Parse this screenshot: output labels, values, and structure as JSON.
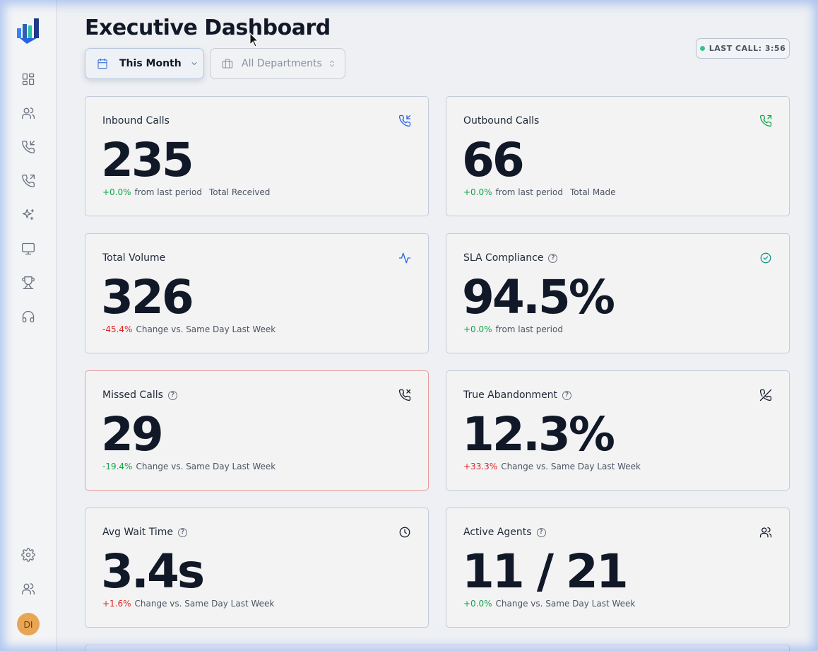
{
  "page": {
    "title": "Executive Dashboard"
  },
  "filters": {
    "period": {
      "label": "This Month"
    },
    "department": {
      "label": "All Departments"
    }
  },
  "status": {
    "last_call": "LAST CALL: 3:56",
    "indicator_color": "#3fbf88"
  },
  "user": {
    "initials": "DI"
  },
  "sidebar": {
    "nav_icons": [
      "dashboard-icon",
      "users-icon",
      "inbound-call-icon",
      "outbound-call-icon",
      "ai-sparkle-icon",
      "monitor-icon",
      "trophy-icon",
      "headset-icon"
    ],
    "bottom_icons": [
      "settings-icon",
      "team-icon"
    ]
  },
  "colors": {
    "positive": "#16a34a",
    "negative": "#dc2626",
    "inbound_icon": "#2563eb",
    "outbound_icon": "#16a34a",
    "alert_border": "#e89a9a"
  },
  "cards": [
    {
      "label": "Inbound Calls",
      "value": "235",
      "change": "+0.0%",
      "change_text": "from last period",
      "note": "Total Received",
      "icon": "phone-incoming-icon"
    },
    {
      "label": "Outbound Calls",
      "value": "66",
      "change": "+0.0%",
      "change_text": "from last period",
      "note": "Total Made",
      "icon": "phone-outgoing-icon"
    },
    {
      "label": "Total Volume",
      "value": "326",
      "change": "-45.4%",
      "change_text": "Change vs. Same Day Last Week",
      "note": "",
      "icon": "activity-icon"
    },
    {
      "label": "SLA Compliance",
      "value": "94.5%",
      "change": "+0.0%",
      "change_text": "from last period",
      "note": "",
      "icon": "check-circle-icon"
    },
    {
      "label": "Missed Calls",
      "value": "29",
      "change": "-19.4%",
      "change_text": "Change vs. Same Day Last Week",
      "note": "",
      "icon": "phone-missed-icon"
    },
    {
      "label": "True Abandonment",
      "value": "12.3%",
      "change": "+33.3%",
      "change_text": "Change vs. Same Day Last Week",
      "note": "",
      "icon": "phone-off-icon"
    },
    {
      "label": "Avg Wait Time",
      "value": "3.4s",
      "change": "+1.6%",
      "change_text": "Change vs. Same Day Last Week",
      "note": "",
      "icon": "clock-icon"
    },
    {
      "label": "Active Agents",
      "value": "11 / 21",
      "change": "+0.0%",
      "change_text": "Change vs. Same Day Last Week",
      "note": "",
      "icon": "users-icon"
    }
  ]
}
